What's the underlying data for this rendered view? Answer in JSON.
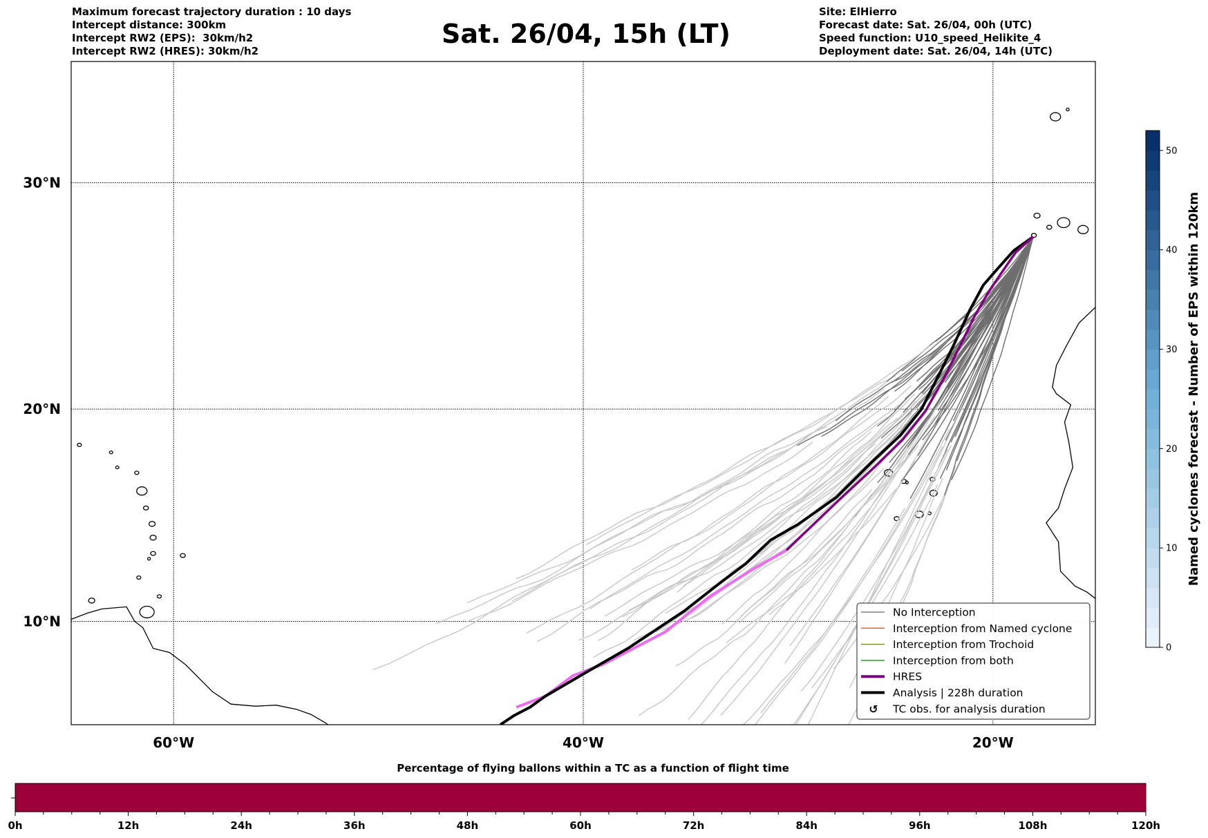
{
  "header": {
    "left": [
      "Maximum forecast trajectory duration : 10 days",
      "Intercept distance: 300km",
      "Intercept RW2 (EPS):  30km/h2",
      "Intercept RW2 (HRES): 30km/h2"
    ],
    "title": "Sat. 26/04, 15h (LT)",
    "right": [
      "Site: ElHierro",
      "Forecast date: Sat. 26/04, 00h (UTC)",
      "Speed function: U10_speed_Helikite_4",
      "Deployment date: Sat. 26/04, 14h (UTC)"
    ]
  },
  "map": {
    "extent_lon": [
      -65,
      -15
    ],
    "extent_lat": [
      5,
      35
    ],
    "projection": "mercator",
    "lat_ticks": [
      {
        "value": 10,
        "label": "10°N"
      },
      {
        "value": 20,
        "label": "20°N"
      },
      {
        "value": 30,
        "label": "30°N"
      }
    ],
    "lon_ticks": [
      {
        "value": -60,
        "label": "60°W"
      },
      {
        "value": -40,
        "label": "40°W"
      },
      {
        "value": -20,
        "label": "20°W"
      }
    ],
    "site": {
      "name": "ElHierro",
      "lon": -18.04,
      "lat": 27.69
    },
    "analysis_track": [
      [
        -18.04,
        27.69
      ],
      [
        -18.98,
        27.09
      ],
      [
        -19.79,
        26.28
      ],
      [
        -20.47,
        25.58
      ],
      [
        -21.14,
        24.45
      ],
      [
        -21.92,
        22.9
      ],
      [
        -22.59,
        21.65
      ],
      [
        -23.5,
        19.98
      ],
      [
        -24.51,
        18.8
      ],
      [
        -25.86,
        17.6
      ],
      [
        -27.65,
        15.9
      ],
      [
        -29.51,
        14.63
      ],
      [
        -30.86,
        13.88
      ],
      [
        -32.07,
        12.76
      ],
      [
        -33.25,
        11.9
      ],
      [
        -35.07,
        10.5
      ],
      [
        -37.77,
        8.73
      ],
      [
        -39.9,
        7.52
      ],
      [
        -41.86,
        6.38
      ],
      [
        -42.6,
        5.85
      ],
      [
        -43.37,
        5.45
      ],
      [
        -44.05,
        5.0
      ]
    ],
    "hres_track_early": [
      [
        -18.04,
        27.69
      ],
      [
        -18.9,
        27.0
      ],
      [
        -19.6,
        26.1
      ],
      [
        -20.2,
        25.3
      ],
      [
        -20.9,
        24.2
      ],
      [
        -21.7,
        22.7
      ],
      [
        -22.4,
        21.4
      ],
      [
        -23.3,
        19.9
      ],
      [
        -24.4,
        18.6
      ],
      [
        -25.8,
        17.3
      ],
      [
        -27.6,
        15.7
      ],
      [
        -30.08,
        13.4
      ]
    ],
    "hres_track_late": [
      [
        -30.08,
        13.4
      ],
      [
        -31.77,
        12.47
      ],
      [
        -33.86,
        11.17
      ],
      [
        -35.99,
        9.5
      ],
      [
        -38.99,
        7.95
      ],
      [
        -40.5,
        7.38
      ],
      [
        -41.86,
        6.38
      ],
      [
        -43.27,
        5.85
      ]
    ],
    "ensemble_members": 50,
    "colors": {
      "no_interception": "#6e6e6e",
      "no_interception_late": "#c8c8c8",
      "named_cyclone": "#ff5a1f",
      "trochoid": "#8c8c3c",
      "both": "#2a9a2a",
      "hres": "#800080",
      "hres_late": "#ee6aee",
      "analysis": "#000000"
    }
  },
  "legend": {
    "items": [
      {
        "label": "No Interception",
        "kind": "line",
        "color": "#808080",
        "icon": "thin-line"
      },
      {
        "label": "Interception from Named cyclone",
        "kind": "line",
        "color": "#ff5a1f",
        "icon": "thin-line"
      },
      {
        "label": "Interception from Trochoid",
        "kind": "line",
        "color": "#8c8c3c",
        "icon": "thin-line"
      },
      {
        "label": "Interception from both",
        "kind": "line",
        "color": "#2a9a2a",
        "icon": "thin-line"
      },
      {
        "label": "HRES",
        "kind": "thick",
        "color": "#800080",
        "icon": "thick-line"
      },
      {
        "label": "Analysis | 228h duration",
        "kind": "thick",
        "color": "#000000",
        "icon": "thick-line"
      },
      {
        "label": "TC obs. for analysis duration",
        "kind": "marker",
        "color": "#000000",
        "icon": "↺"
      }
    ]
  },
  "colorbar": {
    "label": "Named cyclones forecast - Number of EPS within 120km",
    "range": [
      0,
      52
    ],
    "ticks": [
      "0",
      "10",
      "20",
      "30",
      "40",
      "50"
    ],
    "tick_values": [
      0,
      10,
      20,
      30,
      40,
      50
    ],
    "colormap": "Blues",
    "color_low": "#eaf2fb",
    "color_high": "#08306b"
  },
  "timebar": {
    "title": "Percentage of flying ballons within a TC as a function of flight time",
    "range_h": [
      0,
      120
    ],
    "ticks": [
      "0h",
      "12h",
      "24h",
      "36h",
      "48h",
      "60h",
      "72h",
      "84h",
      "96h",
      "108h",
      "120h"
    ],
    "minor_step_h": 3,
    "fill_percent": 100,
    "fill_color": "#9e003a"
  }
}
